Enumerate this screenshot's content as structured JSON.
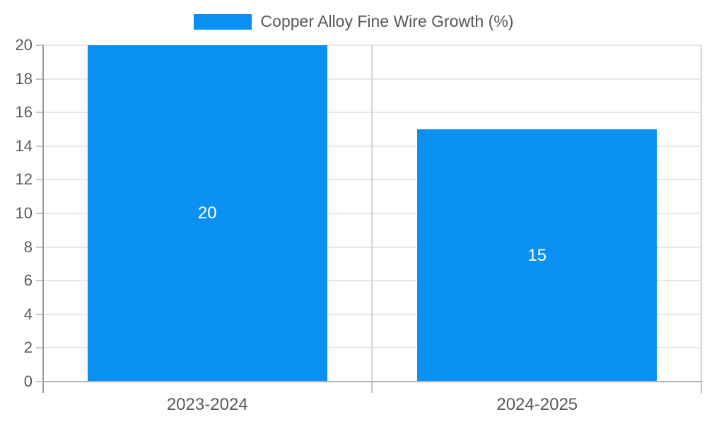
{
  "chart_data": {
    "type": "bar",
    "title": "",
    "xlabel": "",
    "ylabel": "",
    "categories": [
      "2023-2024",
      "2024-2025"
    ],
    "series": [
      {
        "name": "Copper Alloy Fine Wire Growth (%)",
        "color": "#0a90f2",
        "values": [
          20,
          15
        ]
      }
    ],
    "data_labels": [
      20,
      15
    ],
    "ylim": [
      0,
      20
    ],
    "yticks": [
      0,
      2,
      4,
      6,
      8,
      10,
      12,
      14,
      16,
      18,
      20
    ],
    "grid": true,
    "legend_position": "top-center"
  },
  "legend": {
    "label": "Copper Alloy Fine Wire Growth (%)",
    "swatch_color": "#0a90f2"
  },
  "colors": {
    "bar": "#0a90f2",
    "grid_horizontal": "#e7e7e7",
    "grid_vertical": "#d6d6d6",
    "y_axis": "#999999",
    "x_axis": "#b3b3b3",
    "tick": "#c4c4c4",
    "axis_text": "#595959",
    "bar_label": "#ffffff",
    "background": "#ffffff"
  }
}
